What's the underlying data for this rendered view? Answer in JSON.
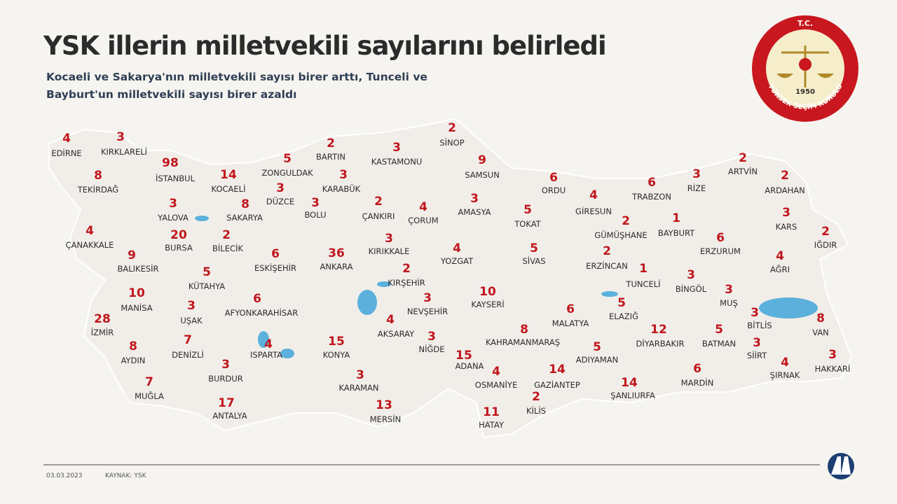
{
  "header": {
    "title": "YSK illerin milletvekili sayılarını belirledi",
    "subtitle_line1": "Kocaeli ve Sakarya'nın milletvekili sayısı birer arttı, Tunceli ve",
    "subtitle_line2": "Bayburt'un milletvekili sayısı birer azaldı"
  },
  "logo": {
    "top": "T.C.",
    "year": "1950",
    "ring": "YÜKSEK SEÇİM KURULU"
  },
  "provinces": [
    {
      "name": "EDİRNE",
      "seats": 4
    },
    {
      "name": "KIRKLARELİ",
      "seats": 3
    },
    {
      "name": "İSTANBUL",
      "seats": 98
    },
    {
      "name": "TEKİRDAĞ",
      "seats": 8
    },
    {
      "name": "KOCAELİ",
      "seats": 14
    },
    {
      "name": "ZONGULDAK",
      "seats": 5
    },
    {
      "name": "BARTIN",
      "seats": 2
    },
    {
      "name": "KASTAMONU",
      "seats": 3
    },
    {
      "name": "SİNOP",
      "seats": 2
    },
    {
      "name": "SAMSUN",
      "seats": 9
    },
    {
      "name": "KARABÜK",
      "seats": 3
    },
    {
      "name": "DÜZCE",
      "seats": 3
    },
    {
      "name": "YALOVA",
      "seats": 3
    },
    {
      "name": "SAKARYA",
      "seats": 8
    },
    {
      "name": "BOLU",
      "seats": 3
    },
    {
      "name": "ÇANKIRI",
      "seats": 2
    },
    {
      "name": "ÇORUM",
      "seats": 4
    },
    {
      "name": "AMASYA",
      "seats": 3
    },
    {
      "name": "ORDU",
      "seats": 6
    },
    {
      "name": "TOKAT",
      "seats": 5
    },
    {
      "name": "GİRESUN",
      "seats": 4
    },
    {
      "name": "TRABZON",
      "seats": 6
    },
    {
      "name": "RİZE",
      "seats": 3
    },
    {
      "name": "ARTVİN",
      "seats": 2
    },
    {
      "name": "ARDAHAN",
      "seats": 2
    },
    {
      "name": "KARS",
      "seats": 3
    },
    {
      "name": "IĞDIR",
      "seats": 2
    },
    {
      "name": "GÜMÜŞHANE",
      "seats": 2
    },
    {
      "name": "BAYBURT",
      "seats": 1
    },
    {
      "name": "ERZURUM",
      "seats": 6
    },
    {
      "name": "AĞRI",
      "seats": 4
    },
    {
      "name": "ÇANAKKALE",
      "seats": 4
    },
    {
      "name": "BURSA",
      "seats": 20
    },
    {
      "name": "BİLECİK",
      "seats": 2
    },
    {
      "name": "ESKİŞEHİR",
      "seats": 6
    },
    {
      "name": "ANKARA",
      "seats": 36
    },
    {
      "name": "KIRIKKALE",
      "seats": 3
    },
    {
      "name": "YOZGAT",
      "seats": 4
    },
    {
      "name": "SİVAS",
      "seats": 5
    },
    {
      "name": "ERZİNCAN",
      "seats": 2
    },
    {
      "name": "TUNCELİ",
      "seats": 1
    },
    {
      "name": "BİNGÖL",
      "seats": 3
    },
    {
      "name": "BALIKESİR",
      "seats": 9
    },
    {
      "name": "KÜTAHYA",
      "seats": 5
    },
    {
      "name": "KIRŞEHİR",
      "seats": 2
    },
    {
      "name": "KAYSERİ",
      "seats": 10
    },
    {
      "name": "MUŞ",
      "seats": 3
    },
    {
      "name": "MANİSA",
      "seats": 10
    },
    {
      "name": "UŞAK",
      "seats": 3
    },
    {
      "name": "AFYONKARAHİSAR",
      "seats": 6
    },
    {
      "name": "NEVŞEHİR",
      "seats": 3
    },
    {
      "name": "AKSARAY",
      "seats": 4
    },
    {
      "name": "ELAZIĞ",
      "seats": 5
    },
    {
      "name": "MALATYA",
      "seats": 6
    },
    {
      "name": "BİTLİS",
      "seats": 3
    },
    {
      "name": "VAN",
      "seats": 8
    },
    {
      "name": "İZMİR",
      "seats": 28
    },
    {
      "name": "DENİZLİ",
      "seats": 7
    },
    {
      "name": "ISPARTA",
      "seats": 4
    },
    {
      "name": "KONYA",
      "seats": 15
    },
    {
      "name": "NİĞDE",
      "seats": 3
    },
    {
      "name": "KAHRAMANMARAŞ",
      "seats": 8
    },
    {
      "name": "DİYARBAKIR",
      "seats": 12
    },
    {
      "name": "BATMAN",
      "seats": 5
    },
    {
      "name": "SİİRT",
      "seats": 3
    },
    {
      "name": "HAKKARİ",
      "seats": 3
    },
    {
      "name": "AYDIN",
      "seats": 8
    },
    {
      "name": "ADANA",
      "seats": 15
    },
    {
      "name": "ADIYAMAN",
      "seats": 5
    },
    {
      "name": "BURDUR",
      "seats": 3
    },
    {
      "name": "KARAMAN",
      "seats": 3
    },
    {
      "name": "OSMANİYE",
      "seats": 4
    },
    {
      "name": "GAZİANTEP",
      "seats": 14
    },
    {
      "name": "ŞANLIURFA",
      "seats": 14
    },
    {
      "name": "MARDİN",
      "seats": 6
    },
    {
      "name": "ŞIRNAK",
      "seats": 4
    },
    {
      "name": "MUĞLA",
      "seats": 7
    },
    {
      "name": "ANTALYA",
      "seats": 17
    },
    {
      "name": "MERSİN",
      "seats": 13
    },
    {
      "name": "KİLİS",
      "seats": 2
    },
    {
      "name": "HATAY",
      "seats": 11
    }
  ],
  "footer": {
    "date": "03.03.2023",
    "source": "KAYNAK: YSK"
  }
}
